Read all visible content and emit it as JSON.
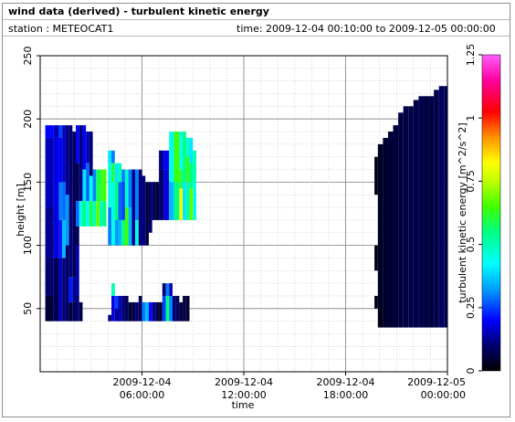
{
  "header": {
    "title": "wind data (derived) - turbulent kinetic energy",
    "station": "station : METEOCAT1",
    "time_range": "time: 2009-12-04 00:10:00 to 2009-12-05 00:00:00"
  },
  "chart_data": {
    "type": "heatmap",
    "title": "wind data (derived) - turbulent kinetic energy",
    "xlabel": "time",
    "ylabel": "height [m]",
    "colorbar_label": "turbulent kinetic energy [m^2/s^2]",
    "x_range_hours": [
      0,
      24
    ],
    "y_range": [
      0,
      250
    ],
    "x_ticks": [
      {
        "hour": 6,
        "line1": "2009-12-04",
        "line2": "06:00:00"
      },
      {
        "hour": 12,
        "line1": "2009-12-04",
        "line2": "12:00:00"
      },
      {
        "hour": 18,
        "line1": "2009-12-04",
        "line2": "18:00:00"
      },
      {
        "hour": 24,
        "line1": "2009-12-05",
        "line2": "00:00:00"
      }
    ],
    "y_ticks": [
      50,
      100,
      150,
      200,
      250
    ],
    "colorbar_range": [
      0,
      1.25
    ],
    "colorbar_ticks": [
      "0",
      "0.25",
      "0.5",
      "0.75",
      "1",
      "1.25"
    ],
    "grid": true,
    "cells": [
      [
        0.3,
        0.8,
        40,
        60,
        0.05
      ],
      [
        0.3,
        0.8,
        60,
        90,
        0.1
      ],
      [
        0.3,
        0.8,
        90,
        130,
        0.12
      ],
      [
        0.3,
        0.8,
        130,
        185,
        0.15
      ],
      [
        0.3,
        0.8,
        185,
        195,
        0.2
      ],
      [
        0.8,
        1.1,
        40,
        90,
        0.08
      ],
      [
        0.8,
        1.1,
        90,
        185,
        0.18
      ],
      [
        0.8,
        1.1,
        185,
        195,
        0.15
      ],
      [
        1.1,
        1.3,
        40,
        90,
        0.15
      ],
      [
        1.1,
        1.3,
        90,
        120,
        0.22
      ],
      [
        1.1,
        1.3,
        120,
        150,
        0.3
      ],
      [
        1.1,
        1.3,
        150,
        185,
        0.2
      ],
      [
        1.1,
        1.3,
        185,
        195,
        0.25
      ],
      [
        1.3,
        1.5,
        40,
        90,
        0.1
      ],
      [
        1.3,
        1.5,
        90,
        120,
        0.35
      ],
      [
        1.3,
        1.5,
        120,
        150,
        0.28
      ],
      [
        1.3,
        1.5,
        150,
        195,
        0.15
      ],
      [
        1.5,
        1.7,
        40,
        100,
        0.1
      ],
      [
        1.5,
        1.7,
        100,
        140,
        0.32
      ],
      [
        1.5,
        1.7,
        140,
        195,
        0.12
      ],
      [
        1.7,
        1.9,
        40,
        55,
        0.05
      ],
      [
        1.7,
        1.9,
        55,
        75,
        0.22
      ],
      [
        1.7,
        1.9,
        75,
        195,
        0.1
      ],
      [
        1.9,
        2.1,
        40,
        55,
        0.08
      ],
      [
        1.9,
        2.1,
        55,
        75,
        0.12
      ],
      [
        1.9,
        2.1,
        75,
        190,
        0.08
      ],
      [
        2.1,
        2.3,
        40,
        60,
        0.1
      ],
      [
        2.1,
        2.3,
        60,
        100,
        0.14
      ],
      [
        2.1,
        2.3,
        100,
        115,
        0.08
      ],
      [
        2.1,
        2.3,
        115,
        135,
        0.28
      ],
      [
        2.1,
        2.3,
        135,
        165,
        0.06
      ],
      [
        2.1,
        2.3,
        165,
        195,
        0.2
      ],
      [
        2.3,
        2.5,
        40,
        55,
        0.06
      ],
      [
        2.3,
        2.5,
        115,
        135,
        0.45
      ],
      [
        2.3,
        2.5,
        135,
        160,
        0.12
      ],
      [
        2.3,
        2.5,
        160,
        195,
        0.1
      ],
      [
        2.5,
        2.7,
        115,
        135,
        0.55
      ],
      [
        2.5,
        2.7,
        135,
        160,
        0.4
      ],
      [
        2.5,
        2.7,
        160,
        195,
        0.2
      ],
      [
        2.7,
        2.9,
        115,
        135,
        0.42
      ],
      [
        2.7,
        2.9,
        135,
        165,
        0.28
      ],
      [
        2.7,
        2.9,
        165,
        190,
        0.15
      ],
      [
        2.9,
        3.1,
        115,
        135,
        0.6
      ],
      [
        2.9,
        3.1,
        135,
        155,
        0.45
      ],
      [
        2.9,
        3.1,
        155,
        190,
        0.1
      ],
      [
        3.1,
        3.3,
        115,
        135,
        0.48
      ],
      [
        3.1,
        3.3,
        135,
        160,
        0.3
      ],
      [
        3.3,
        3.5,
        115,
        135,
        0.68
      ],
      [
        3.3,
        3.5,
        135,
        160,
        0.58
      ],
      [
        3.5,
        3.7,
        115,
        135,
        0.5
      ],
      [
        3.5,
        3.7,
        135,
        160,
        0.62
      ],
      [
        3.7,
        3.9,
        115,
        135,
        0.55
      ],
      [
        3.7,
        3.9,
        135,
        160,
        0.65
      ],
      [
        4.0,
        4.2,
        100,
        130,
        0.3
      ],
      [
        4.0,
        4.2,
        130,
        165,
        0.45
      ],
      [
        4.0,
        4.2,
        165,
        175,
        0.4
      ],
      [
        4.0,
        4.2,
        40,
        45,
        0.1
      ],
      [
        4.2,
        4.4,
        100,
        150,
        0.45
      ],
      [
        4.2,
        4.4,
        150,
        165,
        0.6
      ],
      [
        4.2,
        4.4,
        165,
        175,
        0.3
      ],
      [
        4.2,
        4.4,
        40,
        60,
        0.18
      ],
      [
        4.2,
        4.4,
        60,
        70,
        0.5
      ],
      [
        4.4,
        4.6,
        100,
        120,
        0.32
      ],
      [
        4.4,
        4.6,
        120,
        150,
        0.55
      ],
      [
        4.4,
        4.6,
        150,
        165,
        0.4
      ],
      [
        4.4,
        4.6,
        40,
        50,
        0.12
      ],
      [
        4.4,
        4.6,
        50,
        60,
        0.25
      ],
      [
        4.6,
        4.8,
        100,
        120,
        0.35
      ],
      [
        4.6,
        4.8,
        120,
        150,
        0.28
      ],
      [
        4.6,
        4.8,
        150,
        165,
        0.5
      ],
      [
        4.6,
        4.8,
        40,
        60,
        0.15
      ],
      [
        4.8,
        5.0,
        100,
        120,
        0.55
      ],
      [
        4.8,
        5.0,
        120,
        150,
        0.25
      ],
      [
        4.8,
        5.0,
        150,
        160,
        0.3
      ],
      [
        4.8,
        5.0,
        40,
        60,
        0.1
      ],
      [
        5.0,
        5.2,
        100,
        130,
        0.65
      ],
      [
        5.0,
        5.2,
        130,
        160,
        0.48
      ],
      [
        5.0,
        5.2,
        40,
        60,
        0.08
      ],
      [
        5.2,
        5.4,
        100,
        130,
        0.35
      ],
      [
        5.2,
        5.4,
        130,
        160,
        0.3
      ],
      [
        5.2,
        5.4,
        40,
        55,
        0.05
      ],
      [
        5.4,
        5.6,
        100,
        160,
        0.12
      ],
      [
        5.4,
        5.6,
        40,
        55,
        0.06
      ],
      [
        5.6,
        5.8,
        100,
        120,
        0.45
      ],
      [
        5.6,
        5.8,
        120,
        160,
        0.3
      ],
      [
        5.6,
        5.8,
        40,
        55,
        0.1
      ],
      [
        5.8,
        6.0,
        100,
        160,
        0.1
      ],
      [
        5.8,
        6.0,
        40,
        60,
        0.08
      ],
      [
        6.0,
        6.2,
        100,
        155,
        0.12
      ],
      [
        6.0,
        6.2,
        40,
        55,
        0.3
      ],
      [
        6.2,
        6.4,
        100,
        150,
        0.05
      ],
      [
        6.2,
        6.4,
        40,
        55,
        0.35
      ],
      [
        6.4,
        6.6,
        110,
        150,
        0.1
      ],
      [
        6.4,
        6.6,
        40,
        55,
        0.2
      ],
      [
        6.6,
        6.8,
        120,
        150,
        0.08
      ],
      [
        6.6,
        6.8,
        40,
        55,
        0.12
      ],
      [
        6.8,
        7.0,
        40,
        55,
        0.06
      ],
      [
        6.8,
        7.0,
        120,
        150,
        0.05
      ],
      [
        7.0,
        7.2,
        40,
        55,
        0.05
      ],
      [
        7.2,
        7.4,
        40,
        60,
        0.25
      ],
      [
        7.2,
        7.4,
        60,
        70,
        0.1
      ],
      [
        7.4,
        7.6,
        40,
        60,
        0.55
      ],
      [
        7.4,
        7.6,
        60,
        70,
        0.3
      ],
      [
        7.6,
        7.8,
        40,
        60,
        0.3
      ],
      [
        7.6,
        7.8,
        60,
        70,
        0.15
      ],
      [
        7.8,
        8.0,
        40,
        60,
        0.1
      ],
      [
        8.0,
        8.2,
        40,
        60,
        0.08
      ],
      [
        8.2,
        8.4,
        40,
        55,
        0.06
      ],
      [
        8.4,
        8.6,
        40,
        60,
        0.06
      ],
      [
        8.6,
        8.8,
        40,
        60,
        0.05
      ],
      [
        7.0,
        7.3,
        120,
        160,
        0.1
      ],
      [
        7.0,
        7.3,
        160,
        175,
        0.12
      ],
      [
        7.3,
        7.6,
        120,
        160,
        0.18
      ],
      [
        7.3,
        7.6,
        160,
        175,
        0.2
      ],
      [
        7.6,
        7.9,
        120,
        150,
        0.35
      ],
      [
        7.6,
        7.9,
        150,
        190,
        0.45
      ],
      [
        7.9,
        8.2,
        120,
        150,
        0.55
      ],
      [
        7.9,
        8.2,
        150,
        190,
        0.65
      ],
      [
        8.2,
        8.4,
        120,
        145,
        0.82
      ],
      [
        8.2,
        8.4,
        145,
        160,
        0.6
      ],
      [
        8.2,
        8.4,
        160,
        190,
        0.45
      ],
      [
        8.4,
        8.6,
        120,
        150,
        0.4
      ],
      [
        8.4,
        8.6,
        150,
        190,
        0.55
      ],
      [
        8.6,
        8.8,
        120,
        150,
        0.5
      ],
      [
        8.6,
        8.8,
        150,
        170,
        0.62
      ],
      [
        8.6,
        8.8,
        170,
        185,
        0.48
      ],
      [
        8.8,
        9.0,
        120,
        145,
        0.68
      ],
      [
        8.8,
        9.0,
        145,
        165,
        0.55
      ],
      [
        8.8,
        9.0,
        165,
        185,
        0.4
      ],
      [
        9.0,
        9.2,
        120,
        150,
        0.45
      ],
      [
        9.0,
        9.2,
        150,
        175,
        0.5
      ],
      [
        19.7,
        19.9,
        50,
        60,
        0.02
      ],
      [
        19.7,
        19.9,
        80,
        100,
        0.02
      ],
      [
        19.7,
        19.9,
        140,
        170,
        0.02
      ],
      [
        19.9,
        20.2,
        35,
        50,
        0.02
      ],
      [
        19.9,
        20.2,
        50,
        180,
        0.03
      ],
      [
        20.2,
        20.5,
        35,
        185,
        0.04
      ],
      [
        20.5,
        20.8,
        35,
        190,
        0.05
      ],
      [
        20.8,
        21.1,
        35,
        195,
        0.05
      ],
      [
        21.1,
        21.4,
        35,
        205,
        0.06
      ],
      [
        21.4,
        21.7,
        35,
        210,
        0.06
      ],
      [
        21.7,
        22.0,
        35,
        210,
        0.07
      ],
      [
        22.0,
        22.3,
        35,
        215,
        0.06
      ],
      [
        22.3,
        22.6,
        35,
        218,
        0.07
      ],
      [
        22.6,
        22.9,
        35,
        218,
        0.06
      ],
      [
        22.9,
        23.2,
        35,
        218,
        0.06
      ],
      [
        23.2,
        23.5,
        35,
        223,
        0.07
      ],
      [
        23.5,
        23.8,
        35,
        226,
        0.08
      ],
      [
        23.8,
        24.0,
        35,
        226,
        0.08
      ]
    ]
  }
}
